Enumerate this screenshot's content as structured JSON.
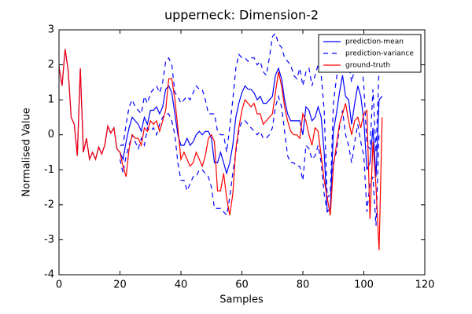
{
  "chart_data": {
    "type": "line",
    "title": "upperneck: Dimension-2",
    "x_label": "Samples",
    "y_label": "Normalised Value",
    "x": [
      0,
      1,
      2,
      3,
      4,
      5,
      6,
      7,
      8,
      9,
      10,
      11,
      12,
      13,
      14,
      15,
      16,
      17,
      18,
      19,
      20,
      21,
      22,
      23,
      24,
      25,
      26,
      27,
      28,
      29,
      30,
      31,
      32,
      33,
      34,
      35,
      36,
      37,
      38,
      39,
      40,
      41,
      42,
      43,
      44,
      45,
      46,
      47,
      48,
      49,
      50,
      51,
      52,
      53,
      54,
      55,
      56,
      57,
      58,
      59,
      60,
      61,
      62,
      63,
      64,
      65,
      66,
      67,
      68,
      69,
      70,
      71,
      72,
      73,
      74,
      75,
      76,
      77,
      78,
      79,
      80,
      81,
      82,
      83,
      84,
      85,
      86,
      87,
      88,
      89,
      90,
      91,
      92,
      93,
      94,
      95,
      96,
      97,
      98,
      99,
      100,
      101,
      102,
      103,
      104,
      105,
      106
    ],
    "series": [
      {
        "name": "prediction-mean",
        "color": "#0000ff",
        "style": "solid",
        "values": [
          1.95,
          1.4,
          2.45,
          1.85,
          0.5,
          0.3,
          -0.6,
          1.9,
          -0.5,
          -0.1,
          -0.7,
          -0.5,
          -0.7,
          -0.35,
          -0.55,
          -0.3,
          0.25,
          0.05,
          0.2,
          -0.4,
          -0.5,
          -0.7,
          -0.2,
          0.2,
          0.5,
          0.4,
          0.3,
          0.1,
          0.5,
          0.3,
          0.7,
          0.7,
          0.8,
          0.6,
          0.8,
          1.3,
          1.4,
          1.2,
          0.6,
          0.0,
          -0.3,
          -0.3,
          -0.1,
          -0.3,
          -0.2,
          0.0,
          0.1,
          0.0,
          0.1,
          0.1,
          -0.1,
          -0.8,
          -0.8,
          -0.5,
          -0.8,
          -1.1,
          -0.8,
          -0.3,
          0.5,
          0.9,
          1.2,
          1.4,
          1.3,
          1.3,
          1.2,
          1.0,
          1.1,
          0.9,
          0.9,
          1.0,
          1.1,
          1.7,
          1.9,
          1.6,
          1.0,
          0.6,
          0.4,
          0.4,
          0.4,
          0.4,
          0.0,
          0.8,
          0.7,
          0.4,
          0.5,
          0.8,
          0.5,
          -0.5,
          -2.2,
          -2.1,
          0.1,
          0.6,
          1.2,
          1.7,
          1.1,
          1.0,
          0.3,
          0.9,
          1.4,
          1.1,
          0.4,
          -1.0,
          -0.8,
          0.2,
          -1.2,
          1.0,
          1.1
        ]
      },
      {
        "name": "prediction-variance",
        "color": "#0000ff",
        "style": "dashed",
        "values": [
          null,
          null,
          null,
          null,
          null,
          null,
          null,
          null,
          null,
          null,
          null,
          null,
          null,
          null,
          null,
          null,
          null,
          null,
          null,
          null,
          -0.3,
          -0.3,
          0.3,
          0.8,
          1.0,
          0.8,
          0.7,
          0.6,
          1.1,
          0.9,
          1.2,
          1.3,
          1.4,
          1.2,
          1.5,
          2.1,
          2.2,
          2.0,
          1.2,
          1.1,
          0.9,
          1.0,
          1.1,
          1.0,
          1.2,
          1.4,
          1.3,
          1.3,
          1.0,
          0.6,
          0.6,
          0.6,
          0.1,
          0.0,
          0.0,
          -0.5,
          0.2,
          1.0,
          1.9,
          2.3,
          2.2,
          2.2,
          2.1,
          2.2,
          2.2,
          2.0,
          2.1,
          1.8,
          1.7,
          2.2,
          2.8,
          2.9,
          2.6,
          2.5,
          2.2,
          2.1,
          2.0,
          1.7,
          1.6,
          1.9,
          1.4,
          1.8,
          1.9,
          1.4,
          1.7,
          2.0,
          1.7,
          0.7,
          -1.8,
          -1.7,
          0.9,
          1.6,
          2.2,
          2.7,
          2.2,
          2.1,
          1.5,
          1.9,
          2.6,
          2.3,
          1.4,
          -0.3,
          -0.4,
          1.3,
          -0.5,
          1.9,
          null
        ],
        "lower": [
          null,
          null,
          null,
          null,
          null,
          null,
          null,
          null,
          null,
          null,
          null,
          null,
          null,
          null,
          null,
          null,
          null,
          null,
          null,
          null,
          -0.7,
          -1.1,
          -0.6,
          -0.3,
          0.0,
          -0.2,
          -0.4,
          -0.1,
          -0.3,
          0.2,
          0.1,
          0.2,
          0.0,
          0.3,
          0.5,
          0.6,
          0.6,
          0.4,
          0.0,
          -0.8,
          -1.3,
          -1.3,
          -1.6,
          -1.4,
          -1.2,
          -1.2,
          -1.0,
          -1.0,
          -1.1,
          -1.2,
          -1.5,
          -2.1,
          -2.1,
          -2.1,
          -2.2,
          -2.3,
          -1.8,
          -1.1,
          -0.5,
          0.1,
          0.4,
          0.4,
          0.3,
          0.2,
          0.1,
          0.0,
          0.1,
          -0.1,
          -0.1,
          0.0,
          0.2,
          0.8,
          1.1,
          0.8,
          0.1,
          -0.6,
          -0.8,
          -0.8,
          -0.9,
          -0.9,
          -1.3,
          -0.3,
          -0.4,
          -0.7,
          -0.6,
          -0.3,
          -0.8,
          -1.7,
          -2.2,
          -2.1,
          -0.8,
          -0.5,
          0.2,
          0.7,
          0.0,
          -0.3,
          -0.8,
          -0.2,
          0.3,
          -0.2,
          -0.6,
          -2.2,
          -1.4,
          -1.2,
          -2.6,
          0.1,
          null
        ]
      },
      {
        "name": "ground-truth",
        "color": "#ff0000",
        "style": "solid",
        "values": [
          1.95,
          1.4,
          2.45,
          1.85,
          0.5,
          0.3,
          -0.6,
          1.9,
          -0.5,
          -0.1,
          -0.7,
          -0.5,
          -0.7,
          -0.35,
          -0.55,
          -0.3,
          0.25,
          0.05,
          0.2,
          -0.4,
          -0.5,
          -0.9,
          -1.2,
          -0.4,
          0.0,
          -0.1,
          -0.1,
          -0.3,
          0.2,
          0.1,
          0.4,
          0.3,
          0.4,
          0.1,
          0.4,
          0.7,
          1.6,
          1.6,
          1.0,
          0.2,
          -0.7,
          -0.5,
          -0.7,
          -0.9,
          -0.8,
          -0.5,
          -0.7,
          -0.9,
          -0.6,
          -0.1,
          0.0,
          -0.2,
          -1.6,
          -1.6,
          -1.1,
          -1.8,
          -2.3,
          -1.7,
          -0.4,
          0.2,
          0.7,
          1.0,
          0.9,
          0.8,
          0.9,
          0.6,
          0.6,
          0.3,
          0.4,
          0.5,
          0.6,
          1.2,
          1.8,
          1.4,
          0.8,
          0.4,
          0.1,
          0.0,
          0.0,
          -0.1,
          0.6,
          0.4,
          0.0,
          -0.3,
          0.2,
          0.1,
          -0.6,
          -1.3,
          -1.8,
          -2.3,
          -0.9,
          -0.3,
          0.3,
          0.6,
          0.9,
          0.4,
          0.0,
          0.4,
          0.5,
          0.2,
          0.6,
          0.7,
          -2.4,
          -0.2,
          -1.5,
          -3.3,
          0.5
        ]
      }
    ],
    "xlim": [
      0,
      120
    ],
    "xticks": [
      0,
      20,
      40,
      60,
      80,
      100,
      120
    ],
    "ylim": [
      -4,
      3
    ],
    "yticks": [
      -4,
      -3,
      -2,
      -1,
      0,
      1,
      2,
      3
    ],
    "legend": "upper right"
  }
}
